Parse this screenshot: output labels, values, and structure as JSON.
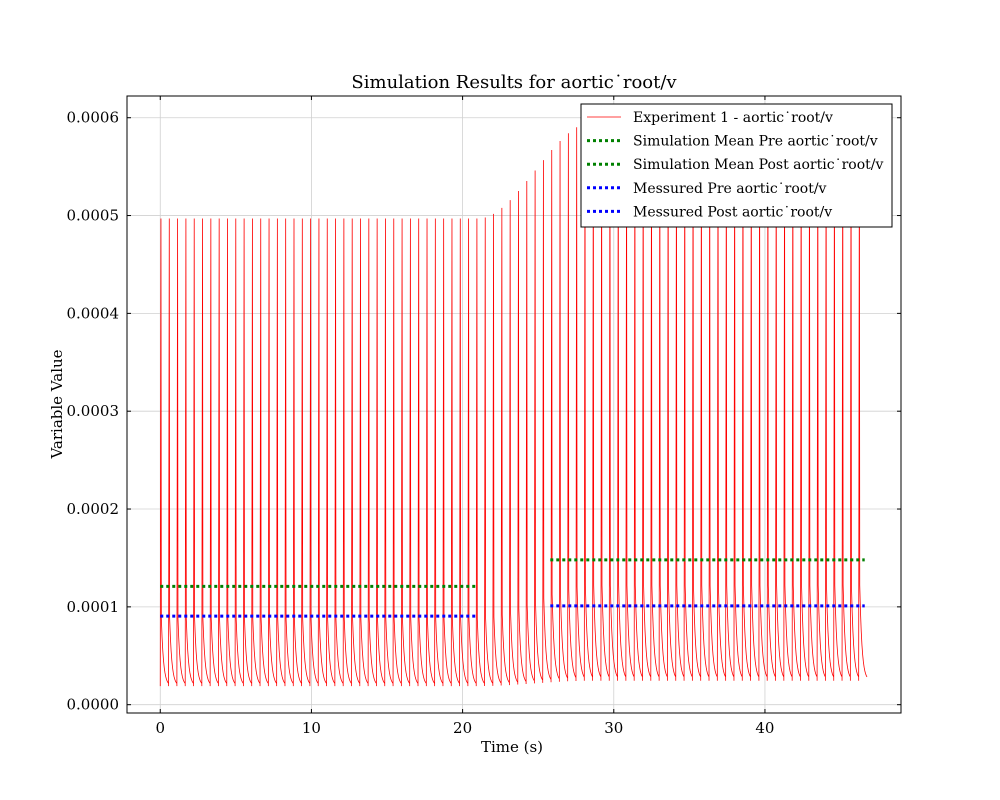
{
  "chart_data": {
    "type": "line",
    "title": "Simulation Results for aortic˙root/v",
    "xlabel": "Time (s)",
    "ylabel": "Variable Value",
    "xlim": [
      -2.2,
      49.0
    ],
    "ylim": [
      -8.5e-06,
      0.0006222
    ],
    "x_ticks": [
      0,
      10,
      20,
      30,
      40
    ],
    "x_tick_labels": [
      "0",
      "10",
      "20",
      "30",
      "40"
    ],
    "y_ticks": [
      0.0,
      0.0001,
      0.0002,
      0.0003,
      0.0004,
      0.0005,
      0.0006
    ],
    "y_tick_labels": [
      "0.0000",
      "0.0001",
      "0.0002",
      "0.0003",
      "0.0004",
      "0.0005",
      "0.0006"
    ],
    "grid": true,
    "legend_position": "top-right",
    "signal": {
      "name": "Experiment 1 - aortic˙root/v",
      "color": "#ff0000",
      "period": 0.55,
      "t_start": 0.0,
      "t_end": 46.5,
      "pre": {
        "t_end": 21.0,
        "peak": 0.000497,
        "shoulder": 8.8e-05,
        "trough": 1.9e-05
      },
      "transition": {
        "t_start": 21.0,
        "t_end": 28.5
      },
      "post": {
        "t_start": 28.5,
        "peak": 0.000595,
        "shoulder": 0.000122,
        "trough": 2.45e-05
      }
    },
    "series": [
      {
        "name": "Simulation Mean Pre aortic˙root/v",
        "color": "#008000",
        "x": [
          0.0,
          21.0
        ],
        "y": [
          0.000121,
          0.000121
        ]
      },
      {
        "name": "Simulation Mean Post aortic˙root/v",
        "color": "#008000",
        "x": [
          25.8,
          46.6
        ],
        "y": [
          0.000148,
          0.000148
        ]
      },
      {
        "name": "Messured Pre aortic˙root/v",
        "color": "#0000ff",
        "x": [
          0.0,
          21.0
        ],
        "y": [
          9.05e-05,
          9.05e-05
        ]
      },
      {
        "name": "Messured Post aortic˙root/v",
        "color": "#0000ff",
        "x": [
          25.8,
          46.6
        ],
        "y": [
          0.000101,
          0.000101
        ]
      }
    ]
  }
}
